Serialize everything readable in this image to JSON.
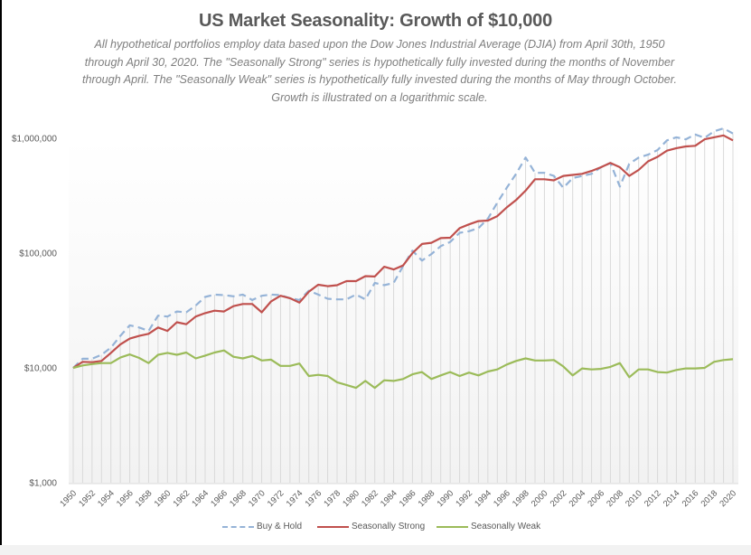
{
  "chart_data": {
    "type": "line",
    "title": "US Market Seasonality: Growth of $10,000",
    "subtitle": "All hypothetical portfolios employ data based upon the Dow Jones Industrial Average (DJIA) from April 30th, 1950 through April 30, 2020. The \"Seasonally Strong\" series is hypothetically fully invested during the months of November through April. The \"Seasonally Weak\" series is hypothetically fully invested during the months of May through October. Growth is illustrated on a logarithmic scale.",
    "xlabel": "",
    "ylabel": "",
    "yscale": "log",
    "ylim": [
      1000,
      1000000
    ],
    "yticks": [
      1000,
      10000,
      100000,
      1000000
    ],
    "ytick_labels": [
      "$1,000",
      "$10,000",
      "$100,000",
      "$1,000,000"
    ],
    "xlim": [
      1950,
      2020
    ],
    "xtick_labels": [
      "1950",
      "1952",
      "1954",
      "1956",
      "1958",
      "1960",
      "1962",
      "1964",
      "1966",
      "1968",
      "1970",
      "1972",
      "1974",
      "1976",
      "1978",
      "1980",
      "1982",
      "1984",
      "1986",
      "1988",
      "1990",
      "1992",
      "1994",
      "1996",
      "1998",
      "2000",
      "2002",
      "2004",
      "2006",
      "2008",
      "2010",
      "2012",
      "2014",
      "2016",
      "2018",
      "2020"
    ],
    "grid": "vertical drop lines at each year",
    "legend_position": "bottom",
    "x": [
      1950,
      1951,
      1952,
      1953,
      1954,
      1955,
      1956,
      1957,
      1958,
      1959,
      1960,
      1961,
      1962,
      1963,
      1964,
      1965,
      1966,
      1967,
      1968,
      1969,
      1970,
      1971,
      1972,
      1973,
      1974,
      1975,
      1976,
      1977,
      1978,
      1979,
      1980,
      1981,
      1982,
      1983,
      1984,
      1985,
      1986,
      1987,
      1988,
      1989,
      1990,
      1991,
      1992,
      1993,
      1994,
      1995,
      1996,
      1997,
      1998,
      1999,
      2000,
      2001,
      2002,
      2003,
      2004,
      2005,
      2006,
      2007,
      2008,
      2009,
      2010,
      2011,
      2012,
      2013,
      2014,
      2015,
      2016,
      2017,
      2018,
      2019,
      2020
    ],
    "series": [
      {
        "name": "Buy & Hold",
        "color": "#95b3d7",
        "dash": "dashed",
        "values": [
          10000,
          12000,
          12000,
          13000,
          15000,
          19000,
          23500,
          22500,
          21000,
          28500,
          28000,
          31000,
          30500,
          35000,
          41500,
          43500,
          43000,
          42000,
          43500,
          39000,
          42500,
          43500,
          43000,
          40500,
          39000,
          47000,
          43500,
          40000,
          39500,
          39500,
          43500,
          39500,
          55000,
          52500,
          55000,
          77000,
          105000,
          86000,
          98000,
          115000,
          125000,
          150000,
          155000,
          165000,
          200000,
          275000,
          370000,
          490000,
          680000,
          500000,
          500000,
          470000,
          370000,
          450000,
          470000,
          490000,
          560000,
          610000,
          380000,
          600000,
          680000,
          720000,
          790000,
          960000,
          1020000,
          980000,
          1080000,
          1010000,
          1150000,
          1220000,
          1100000
        ]
      },
      {
        "name": "Seasonally Strong",
        "color": "#c0504d",
        "dash": "solid",
        "values": [
          10000,
          11300,
          11200,
          11500,
          13500,
          16000,
          18000,
          19000,
          19800,
          22500,
          21000,
          25000,
          24000,
          28000,
          30000,
          31500,
          31000,
          34500,
          36000,
          36000,
          30500,
          38000,
          42500,
          40500,
          37000,
          46000,
          53000,
          51500,
          52500,
          57000,
          57000,
          63000,
          62500,
          76000,
          72000,
          78000,
          100000,
          120000,
          123000,
          135000,
          136000,
          165000,
          178000,
          190000,
          192000,
          210000,
          250000,
          290000,
          350000,
          440000,
          440000,
          430000,
          470000,
          480000,
          490000,
          520000,
          560000,
          610000,
          560000,
          470000,
          530000,
          630000,
          690000,
          780000,
          820000,
          850000,
          860000,
          980000,
          1020000,
          1060000,
          960000
        ]
      },
      {
        "name": "Seasonally Weak",
        "color": "#9bbb59",
        "dash": "solid",
        "values": [
          10000,
          10500,
          10800,
          11000,
          11000,
          12300,
          13100,
          12200,
          11000,
          13000,
          13500,
          13000,
          13600,
          12100,
          12800,
          13600,
          14200,
          12500,
          12100,
          12700,
          11600,
          11800,
          10400,
          10400,
          10900,
          8500,
          8700,
          8500,
          7500,
          7100,
          6700,
          7700,
          6700,
          7800,
          7700,
          8000,
          8800,
          9200,
          8000,
          8600,
          9200,
          8500,
          9100,
          8600,
          9300,
          9700,
          10700,
          11500,
          12100,
          11600,
          11600,
          11700,
          10300,
          8600,
          9900,
          9700,
          9800,
          10200,
          11000,
          8300,
          9700,
          9700,
          9200,
          9100,
          9600,
          9900,
          9900,
          10000,
          11300,
          11700,
          11900
        ]
      }
    ]
  }
}
